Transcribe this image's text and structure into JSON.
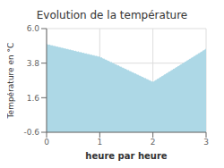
{
  "chart_data": {
    "type": "area",
    "title": "Evolution de la température",
    "x_label": "heure par heure",
    "y_label": "Température en °C",
    "x": [
      0,
      1,
      2,
      3
    ],
    "values": [
      5.0,
      4.2,
      2.6,
      4.7
    ],
    "xlim": [
      0,
      3
    ],
    "ylim": [
      -0.6,
      6.0
    ],
    "xticks": [
      0,
      1,
      2,
      3
    ],
    "yticks": [
      -0.6,
      1.6,
      3.8,
      {
        "value": 6.0,
        "label": "6.0"
      }
    ],
    "color": "#add8e6",
    "line_style": "dotted",
    "grid": true
  }
}
